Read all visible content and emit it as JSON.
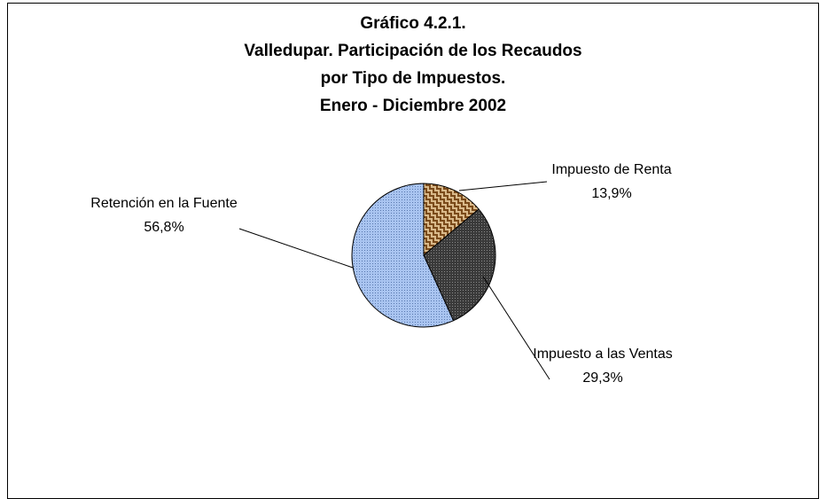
{
  "chart_data": {
    "type": "pie",
    "title": [
      "Gráfico 4.2.1.",
      "Valledupar. Participación de los Recaudos",
      "por Tipo de Impuestos.",
      "Enero - Diciembre 2002"
    ],
    "categories": [
      "Impuesto de Renta",
      "Impuesto a las Ventas",
      "Retención en la Fuente"
    ],
    "values": [
      13.9,
      29.3,
      56.8
    ],
    "value_labels": [
      "13,9%",
      "29,3%",
      "56,8%"
    ],
    "colors": [
      "#d9b98a",
      "#3a3a3a",
      "#a9c4f0"
    ]
  }
}
